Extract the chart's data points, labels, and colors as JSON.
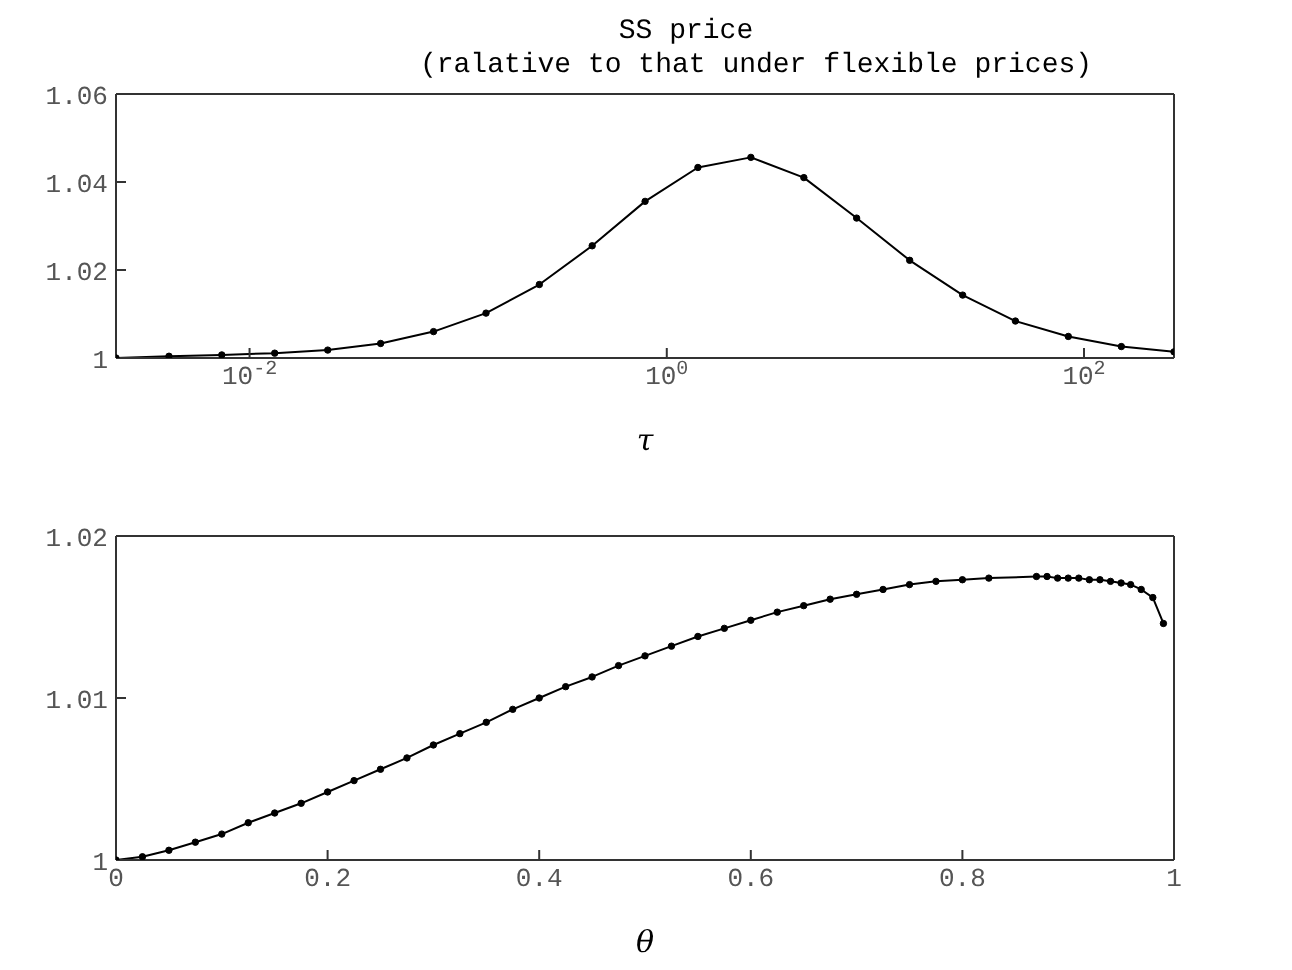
{
  "chart_data": [
    {
      "type": "line",
      "title": "SS price",
      "subtitle": "(ralative to that under flexible prices)",
      "xlabel": "τ",
      "log": "x",
      "marker": "circle",
      "line_style": "solid",
      "x": [
        0.00229,
        0.00411,
        0.00736,
        0.0132,
        0.0237,
        0.0425,
        0.0762,
        0.136,
        0.245,
        0.439,
        0.787,
        1.41,
        2.53,
        4.54,
        8.13,
        14.6,
        26.2,
        46.9,
        84.1,
        151,
        270
      ],
      "series": [
        {
          "color": "#000000",
          "values": [
            1.0,
            1.0004,
            1.0007,
            1.0011,
            1.0018,
            1.0033,
            1.006,
            1.0102,
            1.0167,
            1.0255,
            1.0356,
            1.0433,
            1.0456,
            1.041,
            1.0318,
            1.0222,
            1.0143,
            1.0084,
            1.0049,
            1.0026,
            1.0014
          ]
        }
      ],
      "xlim": [
        0.00229,
        270
      ],
      "xticks": [
        {
          "value": 0.01,
          "label": "10$^{-2}$"
        },
        {
          "value": 1,
          "label": "10$^{0}$"
        },
        {
          "value": 100,
          "label": "10$^{2}$"
        }
      ],
      "ylim": [
        1,
        1.06
      ],
      "yticks": [
        1,
        1.02,
        1.04,
        1.06
      ]
    },
    {
      "type": "line",
      "xlabel": "θ",
      "marker": "circle",
      "line_style": "solid",
      "x": [
        0,
        0.025,
        0.05,
        0.075,
        0.1,
        0.125,
        0.15,
        0.175,
        0.2,
        0.225,
        0.25,
        0.275,
        0.3,
        0.325,
        0.35,
        0.375,
        0.4,
        0.425,
        0.45,
        0.475,
        0.5,
        0.525,
        0.55,
        0.575,
        0.6,
        0.625,
        0.65,
        0.675,
        0.7,
        0.725,
        0.75,
        0.775,
        0.8,
        0.825,
        0.87,
        0.88,
        0.89,
        0.9,
        0.91,
        0.92,
        0.93,
        0.94,
        0.95,
        0.959,
        0.969,
        0.98,
        0.99
      ],
      "series": [
        {
          "color": "#000000",
          "values": [
            1.0,
            1.0002,
            1.0006,
            1.0011,
            1.0016,
            1.0023,
            1.0029,
            1.0035,
            1.0042,
            1.0049,
            1.0056,
            1.0063,
            1.0071,
            1.0078,
            1.0085,
            1.0093,
            1.01,
            1.0107,
            1.0113,
            1.012,
            1.0126,
            1.0132,
            1.0138,
            1.0143,
            1.0148,
            1.0153,
            1.0157,
            1.0161,
            1.0164,
            1.0167,
            1.017,
            1.0172,
            1.0173,
            1.0174,
            1.0175,
            1.0175,
            1.0174,
            1.0174,
            1.0174,
            1.0173,
            1.0173,
            1.0172,
            1.0171,
            1.017,
            1.0167,
            1.0162,
            1.0146
          ]
        }
      ],
      "xlim": [
        0,
        1
      ],
      "xticks": [
        0,
        0.2,
        0.4,
        0.6,
        0.8,
        1
      ],
      "ylim": [
        1,
        1.02
      ],
      "yticks": [
        1,
        1.01,
        1.02
      ]
    }
  ]
}
